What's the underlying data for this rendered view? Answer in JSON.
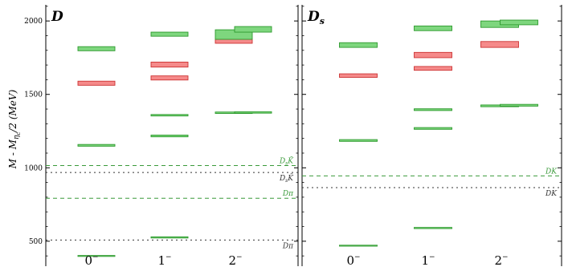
{
  "colors": {
    "green_fill": "#7ed67e",
    "green_stroke": "#2e9a2e",
    "red_fill": "#f58a8a",
    "red_stroke": "#cc3333",
    "green_threshold": "#3a9a3a",
    "black_threshold": "#333333"
  },
  "chart_data": {
    "type": "box",
    "ylabel": "M - M_{η_c}/2  (MeV)",
    "ylabel_parts": {
      "m": "M - M",
      "sub": "η",
      "subsub": "c",
      "rest": "/2  (MeV)"
    },
    "ylim": [
      330,
      2110
    ],
    "yticks": [
      500,
      1000,
      1500,
      2000
    ],
    "ytick_labels": [
      "500",
      "1000",
      "1500",
      "2000"
    ],
    "categories": [
      "0",
      "1",
      "2"
    ],
    "category_superscript": "−",
    "panels": [
      {
        "title": "D",
        "title_sub": "",
        "levels": [
          {
            "cat": 0,
            "color": "green",
            "lo": 397,
            "hi": 403
          },
          {
            "cat": 0,
            "color": "green",
            "lo": 1147,
            "hi": 1159
          },
          {
            "cat": 0,
            "color": "red",
            "lo": 1562,
            "hi": 1590
          },
          {
            "cat": 0,
            "color": "green",
            "lo": 1797,
            "hi": 1825
          },
          {
            "cat": 1,
            "color": "green",
            "lo": 522,
            "hi": 530
          },
          {
            "cat": 1,
            "color": "green",
            "lo": 1211,
            "hi": 1223
          },
          {
            "cat": 1,
            "color": "green",
            "lo": 1353,
            "hi": 1363
          },
          {
            "cat": 1,
            "color": "red",
            "lo": 1598,
            "hi": 1626
          },
          {
            "cat": 1,
            "color": "red",
            "lo": 1686,
            "hi": 1720
          },
          {
            "cat": 1,
            "color": "green",
            "lo": 1896,
            "hi": 1924
          },
          {
            "cat": 2,
            "color": "green",
            "lo": 1370,
            "hi": 1380,
            "offset": -1
          },
          {
            "cat": 2,
            "color": "green",
            "lo": 1372,
            "hi": 1382,
            "offset": 1
          },
          {
            "cat": 2,
            "color": "red",
            "lo": 1848,
            "hi": 1876,
            "offset": -1
          },
          {
            "cat": 2,
            "color": "green",
            "lo": 1875,
            "hi": 1940,
            "offset": -1
          },
          {
            "cat": 2,
            "color": "green",
            "lo": 1924,
            "hi": 1962,
            "offset": 1
          }
        ],
        "thresholds": [
          {
            "y": 1015,
            "label": "D_sK̄",
            "label_main": "D",
            "label_sub": "s",
            "label_rest": "K̄",
            "color": "green"
          },
          {
            "y": 968,
            "label": "D_sK̄",
            "label_main": "D",
            "label_sub": "s",
            "label_rest": "K̄",
            "color": "black"
          },
          {
            "y": 793,
            "label": "Dπ",
            "label_main": "Dπ",
            "label_sub": "",
            "label_rest": "",
            "color": "green"
          },
          {
            "y": 508,
            "label": "Dπ",
            "label_main": "Dπ",
            "label_sub": "",
            "label_rest": "",
            "color": "black"
          }
        ]
      },
      {
        "title": "D",
        "title_sub": "s",
        "levels": [
          {
            "cat": 0,
            "color": "green",
            "lo": 467,
            "hi": 473
          },
          {
            "cat": 0,
            "color": "green",
            "lo": 1180,
            "hi": 1192
          },
          {
            "cat": 0,
            "color": "red",
            "lo": 1616,
            "hi": 1640
          },
          {
            "cat": 0,
            "color": "green",
            "lo": 1820,
            "hi": 1852
          },
          {
            "cat": 1,
            "color": "green",
            "lo": 586,
            "hi": 594
          },
          {
            "cat": 1,
            "color": "green",
            "lo": 1262,
            "hi": 1274
          },
          {
            "cat": 1,
            "color": "green",
            "lo": 1390,
            "hi": 1402
          },
          {
            "cat": 1,
            "color": "red",
            "lo": 1664,
            "hi": 1690
          },
          {
            "cat": 1,
            "color": "red",
            "lo": 1750,
            "hi": 1786
          },
          {
            "cat": 1,
            "color": "green",
            "lo": 1934,
            "hi": 1966
          },
          {
            "cat": 2,
            "color": "green",
            "lo": 1416,
            "hi": 1428,
            "offset": -1
          },
          {
            "cat": 2,
            "color": "green",
            "lo": 1420,
            "hi": 1432,
            "offset": 1
          },
          {
            "cat": 2,
            "color": "red",
            "lo": 1820,
            "hi": 1860,
            "offset": -1
          },
          {
            "cat": 2,
            "color": "green",
            "lo": 1956,
            "hi": 2000,
            "offset": -1
          },
          {
            "cat": 2,
            "color": "green",
            "lo": 1974,
            "hi": 2006,
            "offset": 1
          }
        ],
        "thresholds": [
          {
            "y": 945,
            "label": "DK",
            "label_main": "DK",
            "label_sub": "",
            "label_rest": "",
            "color": "green"
          },
          {
            "y": 865,
            "label": "DK",
            "label_main": "DK",
            "label_sub": "",
            "label_rest": "",
            "color": "black"
          }
        ]
      }
    ]
  }
}
